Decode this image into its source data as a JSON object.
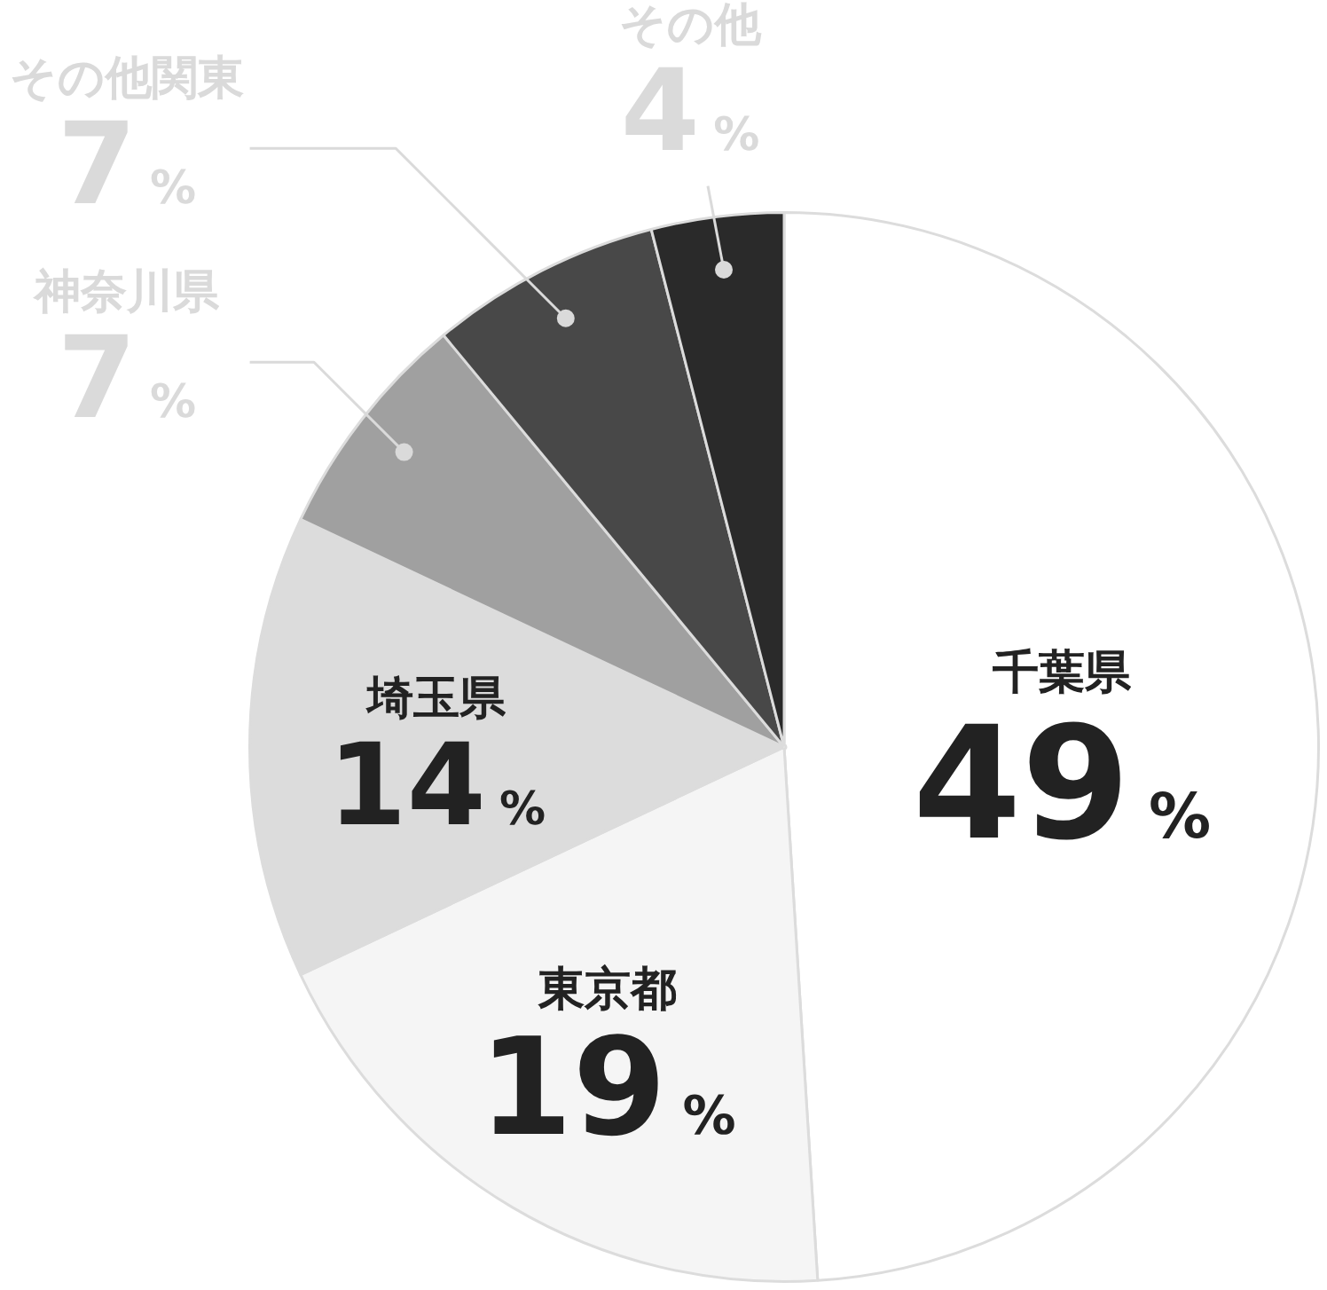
{
  "chart_data": {
    "type": "pie",
    "categories": [
      "千葉県",
      "東京都",
      "埼玉県",
      "神奈川県",
      "その他関東",
      "その他"
    ],
    "values": [
      49,
      19,
      14,
      7,
      7,
      4
    ],
    "colors": [
      "#ffffff",
      "#f5f5f5",
      "#dcdcdc",
      "#a0a0a0",
      "#484848",
      "#2a2a2a"
    ],
    "value_labels": [
      "49%",
      "19%",
      "14%",
      "7%",
      "7%",
      "4%"
    ],
    "legend": false
  }
}
